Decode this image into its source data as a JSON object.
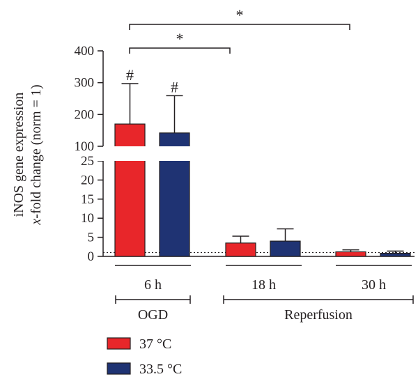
{
  "chart_data": {
    "type": "bar",
    "title": "",
    "ylabel_line1": "iNOS gene expression",
    "ylabel_line2_italic": "x",
    "ylabel_line2_rest": "-fold change (norm = 1)",
    "xlabel": "",
    "y_axis": {
      "broken": true,
      "lower_range": [
        0,
        25
      ],
      "upper_range": [
        100,
        400
      ],
      "lower_ticks": [
        "0",
        "5",
        "10",
        "15",
        "20",
        "25"
      ],
      "upper_ticks": [
        "100",
        "200",
        "300",
        "400"
      ]
    },
    "reference_line": {
      "value": 1,
      "style": "dotted"
    },
    "categories": [
      "6 h",
      "18 h",
      "30 h"
    ],
    "phase_groups": [
      {
        "label": "OGD",
        "categories": [
          "6 h"
        ]
      },
      {
        "label": "Reperfusion",
        "categories": [
          "18 h",
          "30 h"
        ]
      }
    ],
    "series": [
      {
        "name": "37 °C",
        "color": "#e8262a",
        "values": [
          170,
          3.5,
          1.2
        ],
        "errors": [
          127,
          1.8,
          0.5
        ]
      },
      {
        "name": "33.5 °C",
        "color": "#1f3373",
        "values": [
          142,
          4.0,
          0.8
        ],
        "errors": [
          117,
          3.2,
          0.6
        ]
      }
    ],
    "annotations": [
      {
        "text": "#",
        "series": "37 °C",
        "category": "6 h"
      },
      {
        "text": "#",
        "series": "33.5 °C",
        "category": "6 h"
      },
      {
        "text": "*",
        "from": "37 °C 6 h",
        "to": "37 °C 18 h"
      },
      {
        "text": "*",
        "from": "37 °C 6 h",
        "to": "37 °C 30 h"
      }
    ],
    "legend": {
      "position": "bottom-left"
    }
  }
}
